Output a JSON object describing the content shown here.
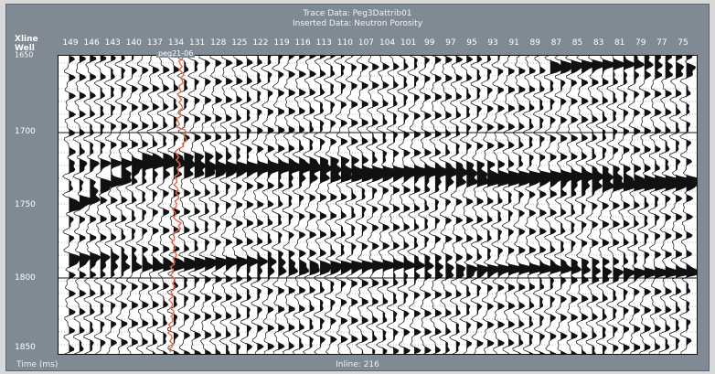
{
  "title": {
    "line1": "Trace Data: Peg3Dattrib01",
    "line2": "Inserted Data: Neutron Porosity"
  },
  "axis_corner": {
    "xline_label": "Xline",
    "well_label": "Well"
  },
  "top_axis": {
    "ticks": [
      "149",
      "146",
      "143",
      "140",
      "137",
      "134",
      "131",
      "128",
      "125",
      "122",
      "119",
      "116",
      "113",
      "110",
      "107",
      "104",
      "101",
      "99",
      "97",
      "95",
      "93",
      "91",
      "89",
      "87",
      "85",
      "83",
      "81",
      "79",
      "77",
      "75"
    ]
  },
  "left_axis": {
    "ticks": [
      "1700",
      "1750",
      "1800",
      "1850"
    ],
    "top_tick_partial": "1650"
  },
  "well": {
    "name": "peg21-06",
    "log_color": "#e46a4a"
  },
  "footer": {
    "time_label": "Time (ms)",
    "inline_label": "Inline: 216"
  },
  "colors": {
    "background": "#7f8a94",
    "plot_background": "#ffffff",
    "trace_ink": "#111111",
    "log_color": "#e46a4a"
  }
}
